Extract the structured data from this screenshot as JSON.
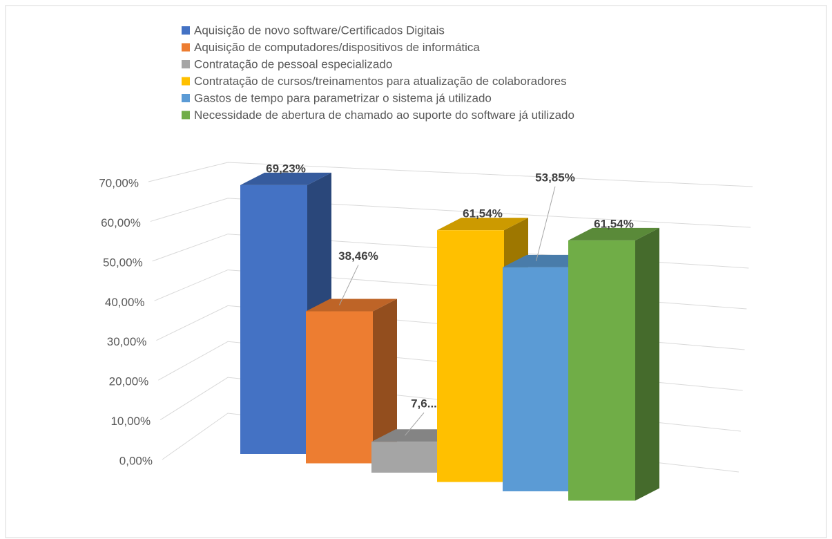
{
  "chart_data": {
    "type": "bar3d",
    "categories": [
      null
    ],
    "series": [
      {
        "name": "Aquisição de novo software/Certificados Digitais",
        "color": "#4472c4",
        "values": [
          69.23
        ],
        "value_labels": [
          "69,23%"
        ]
      },
      {
        "name": "Aquisição de computadores/dispositivos de informática",
        "color": "#ed7d31",
        "values": [
          38.46
        ],
        "value_labels": [
          "38,46%"
        ]
      },
      {
        "name": "Contratação de pessoal especializado",
        "color": "#a5a5a5",
        "values": [
          7.69
        ],
        "value_labels": [
          "7,6..."
        ]
      },
      {
        "name": "Contratação de cursos/treinamentos para atualização de colaboradores",
        "color": "#ffc000",
        "values": [
          61.54
        ],
        "value_labels": [
          "61,54%"
        ]
      },
      {
        "name": "Gastos de tempo para parametrizar o sistema já utilizado",
        "color": "#5b9bd5",
        "values": [
          53.85
        ],
        "value_labels": [
          "53,85%"
        ]
      },
      {
        "name": "Necessidade de abertura de chamado ao suporte do software já utilizado",
        "color": "#70ad47",
        "values": [
          61.54
        ],
        "value_labels": [
          "61,54%"
        ]
      }
    ],
    "ylim": [
      0,
      70
    ],
    "yticks": [
      {
        "value": 0,
        "label": "0,00%"
      },
      {
        "value": 10,
        "label": "10,00%"
      },
      {
        "value": 20,
        "label": "20,00%"
      },
      {
        "value": 30,
        "label": "30,00%"
      },
      {
        "value": 40,
        "label": "40,00%"
      },
      {
        "value": 50,
        "label": "50,00%"
      },
      {
        "value": 60,
        "label": "60,00%"
      },
      {
        "value": 70,
        "label": "70,00%"
      }
    ],
    "grid": true
  }
}
